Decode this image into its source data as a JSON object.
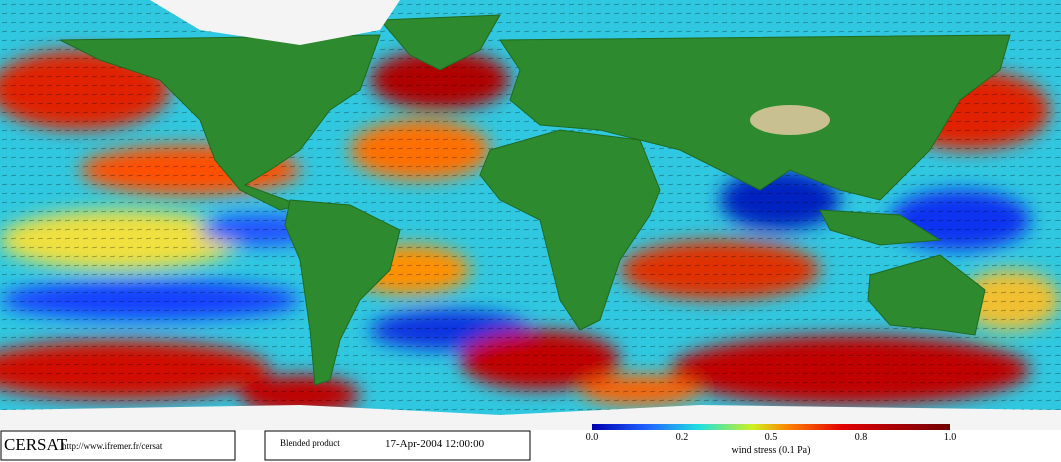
{
  "header": {
    "logo": "CERSAT",
    "url": "http://www.ifremer.fr/cersat",
    "product": "Blended product",
    "date": "17-Apr-2004 12:00:00"
  },
  "legend": {
    "ticks": [
      "0.0",
      "0.2",
      "0.5",
      "0.8",
      "1.0"
    ],
    "label": "wind stress (0.1 Pa)"
  }
}
